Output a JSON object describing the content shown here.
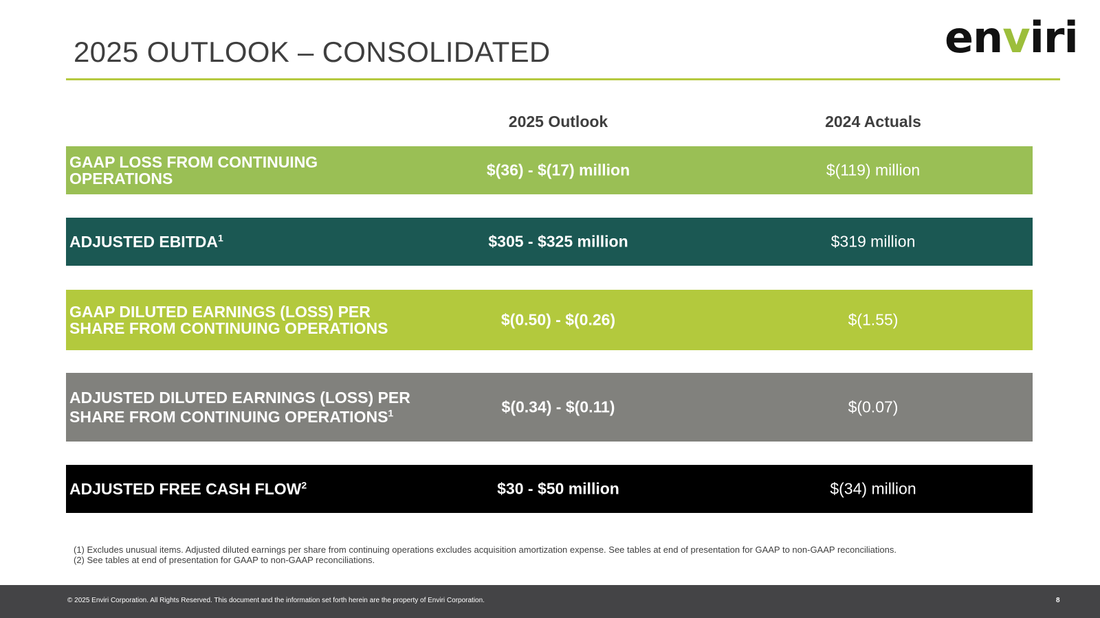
{
  "header": {
    "title": "2025 OUTLOOK – CONSOLIDATED",
    "logo_prefix": "en",
    "logo_v": "v",
    "logo_suffix": "iri"
  },
  "columns": {
    "outlook": "2025 Outlook",
    "actuals": "2024 Actuals"
  },
  "rows": [
    {
      "label_line1": "GAAP LOSS FROM CONTINUING",
      "label_line2": "OPERATIONS",
      "footnote_ref": "",
      "outlook": "$(36) - $(17) million",
      "actual": "$(119) million",
      "color": "#9abf55"
    },
    {
      "label_line1": "ADJUSTED EBITDA",
      "label_line2": "",
      "footnote_ref": "1",
      "outlook": "$305 - $325 million",
      "actual": "$319 million",
      "color": "#1b5853"
    },
    {
      "label_line1": "GAAP DILUTED EARNINGS (LOSS) PER",
      "label_line2": "SHARE FROM CONTINUING OPERATIONS",
      "footnote_ref": "",
      "outlook": "$(0.50) - $(0.26)",
      "actual": "$(1.55)",
      "color": "#b3c93d"
    },
    {
      "label_line1": "ADJUSTED DILUTED EARNINGS (LOSS) PER",
      "label_line2": "SHARE FROM CONTINUING OPERATIONS",
      "footnote_ref": "1",
      "outlook": "$(0.34) - $(0.11)",
      "actual": "$(0.07)",
      "color": "#81817d"
    },
    {
      "label_line1": "ADJUSTED FREE CASH FLOW",
      "label_line2": "",
      "footnote_ref": "2",
      "outlook": "$30 - $50 million",
      "actual": "$(34) million",
      "color": "#000000"
    }
  ],
  "footnotes": [
    "(1) Excludes unusual items. Adjusted diluted earnings per share from continuing operations excludes acquisition amortization expense. See tables at end of presentation for GAAP to non-GAAP reconciliations.",
    "(2) See tables at end of presentation for GAAP to non-GAAP reconciliations."
  ],
  "footer": {
    "copyright": "© 2025 Enviri Corporation.  All Rights Reserved. This document and the information set forth herein are the property of Enviri Corporation.",
    "page_number": "8"
  },
  "colors": {
    "accent_line": "#b5c93f",
    "footer_bg": "#444446"
  }
}
